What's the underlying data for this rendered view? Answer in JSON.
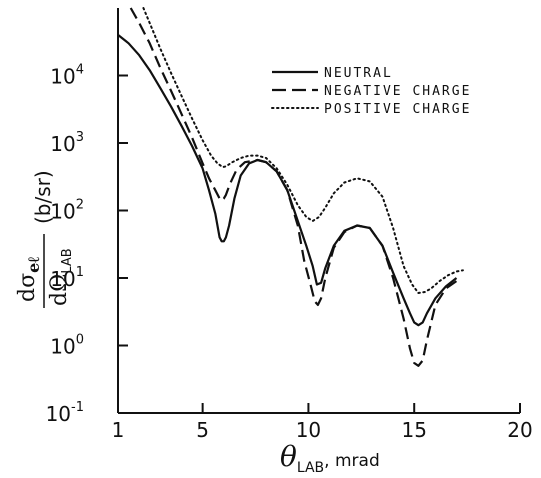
{
  "chart_data": {
    "type": "line",
    "title": "",
    "xlabel": {
      "main": "θ",
      "sub": "LAB",
      "unit": ", mrad"
    },
    "ylabel": {
      "numerator": "dσ",
      "numerator_sub": "eℓ",
      "denominator": "dΩ",
      "denominator_sub": "LAB",
      "unit": "(b/sr)"
    },
    "xlim": [
      1,
      20
    ],
    "ylim": [
      0.1,
      100000
    ],
    "y_scale": "log",
    "x_ticks": [
      "1",
      "5",
      "10",
      "15",
      "20"
    ],
    "x_tick_values": [
      1,
      5,
      10,
      15,
      20
    ],
    "y_ticks": [
      {
        "base": "10",
        "exp": "-1",
        "value": 0.1
      },
      {
        "base": "10",
        "exp": "0",
        "value": 1
      },
      {
        "base": "10",
        "exp": "1",
        "value": 10
      },
      {
        "base": "10",
        "exp": "2",
        "value": 100
      },
      {
        "base": "10",
        "exp": "3",
        "value": 1000
      },
      {
        "base": "10",
        "exp": "4",
        "value": 10000
      }
    ],
    "grid": false,
    "legend_position": "top-right",
    "series": [
      {
        "name": "NEUTRAL",
        "style": "solid",
        "x": [
          1.0,
          1.5,
          2.0,
          2.5,
          3.0,
          3.5,
          4.0,
          4.5,
          5.0,
          5.3,
          5.6,
          5.8,
          5.9,
          6.0,
          6.1,
          6.25,
          6.5,
          6.8,
          7.2,
          7.6,
          8.0,
          8.5,
          9.0,
          9.5,
          9.9,
          10.2,
          10.4,
          10.6,
          10.8,
          11.2,
          11.7,
          12.3,
          12.9,
          13.5,
          14.0,
          14.5,
          14.8,
          15.0,
          15.2,
          15.4,
          15.6,
          16.0,
          16.5,
          17.0
        ],
        "y": [
          40000,
          30000,
          20000,
          12000,
          6500,
          3500,
          1800,
          900,
          420,
          200,
          90,
          40,
          35,
          35,
          40,
          60,
          150,
          330,
          500,
          560,
          520,
          380,
          200,
          70,
          30,
          15,
          8,
          8.5,
          14,
          30,
          50,
          60,
          55,
          30,
          12,
          5,
          3,
          2.2,
          2,
          2.2,
          3,
          5,
          7.5,
          10
        ]
      },
      {
        "name": "NEGATIVE CHARGE",
        "style": "dashed",
        "x": [
          1.6,
          2.0,
          2.5,
          3.0,
          3.5,
          4.0,
          4.5,
          5.0,
          5.3,
          5.6,
          5.8,
          5.9,
          6.0,
          6.1,
          6.3,
          6.6,
          7.0,
          7.6,
          8.0,
          8.5,
          9.0,
          9.5,
          9.8,
          10.1,
          10.3,
          10.45,
          10.6,
          10.8,
          11.2,
          11.7,
          12.3,
          12.9,
          13.5,
          14.0,
          14.5,
          14.8,
          15.0,
          15.2,
          15.4,
          15.6,
          16.0,
          16.5,
          17.0
        ],
        "y": [
          100000,
          60000,
          30000,
          13000,
          6000,
          2700,
          1200,
          500,
          300,
          200,
          150,
          140,
          150,
          170,
          250,
          400,
          520,
          560,
          520,
          380,
          200,
          60,
          18,
          8,
          4.5,
          4,
          5,
          10,
          28,
          48,
          60,
          55,
          30,
          10,
          2.5,
          0.9,
          0.55,
          0.5,
          0.6,
          1.2,
          4,
          7,
          9
        ]
      },
      {
        "name": "POSITIVE CHARGE",
        "style": "dotted",
        "x": [
          2.2,
          2.5,
          3.0,
          3.5,
          4.0,
          4.5,
          5.0,
          5.4,
          5.7,
          5.95,
          6.1,
          6.4,
          6.8,
          7.2,
          7.6,
          8.0,
          8.5,
          9.0,
          9.5,
          9.9,
          10.2,
          10.5,
          10.8,
          11.2,
          11.7,
          12.3,
          12.9,
          13.5,
          14.0,
          14.5,
          14.9,
          15.2,
          15.5,
          15.8,
          16.2,
          16.6,
          17.0,
          17.3
        ],
        "y": [
          100000,
          60000,
          25000,
          11000,
          5000,
          2300,
          1100,
          650,
          500,
          440,
          450,
          520,
          600,
          650,
          650,
          600,
          420,
          240,
          120,
          80,
          70,
          80,
          110,
          180,
          260,
          300,
          270,
          160,
          55,
          15,
          8,
          6,
          6.2,
          7,
          9,
          11,
          12.5,
          13
        ]
      }
    ]
  }
}
